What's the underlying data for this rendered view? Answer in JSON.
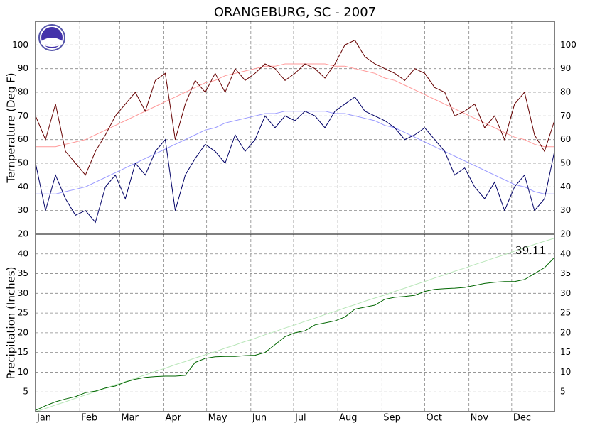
{
  "chart_data": [
    {
      "type": "line",
      "title": "ORANGEBURG, SC - 2007",
      "ylabel": "Temperature (Deg F)",
      "x": [
        1,
        8,
        15,
        22,
        29,
        36,
        43,
        50,
        57,
        64,
        71,
        78,
        85,
        92,
        99,
        106,
        113,
        120,
        127,
        134,
        141,
        148,
        155,
        162,
        169,
        176,
        183,
        190,
        197,
        204,
        211,
        218,
        225,
        232,
        239,
        246,
        253,
        260,
        267,
        274,
        281,
        288,
        295,
        302,
        309,
        316,
        323,
        330,
        337,
        344,
        351,
        358,
        365
      ],
      "xlim": [
        1,
        365
      ],
      "ylim": [
        20,
        110
      ],
      "yticks": [
        20,
        30,
        40,
        50,
        60,
        70,
        80,
        90,
        100
      ],
      "grid": true,
      "series": [
        {
          "color": "#ff9999",
          "values": [
            57,
            57,
            57,
            58,
            59,
            60,
            62,
            64,
            66,
            68,
            70,
            72,
            74,
            76,
            78,
            80,
            82,
            84,
            85,
            87,
            88,
            89,
            90,
            91,
            91,
            92,
            92,
            92,
            92,
            92,
            91,
            91,
            90,
            89,
            88,
            86,
            85,
            83,
            81,
            79,
            77,
            75,
            73,
            71,
            69,
            67,
            65,
            63,
            61,
            60,
            58,
            57,
            57
          ]
        },
        {
          "color": "#9999ff",
          "values": [
            37,
            37,
            37,
            38,
            39,
            40,
            42,
            44,
            46,
            48,
            50,
            52,
            54,
            56,
            58,
            60,
            62,
            64,
            65,
            67,
            68,
            69,
            70,
            71,
            71,
            72,
            72,
            72,
            72,
            72,
            71,
            71,
            70,
            69,
            68,
            66,
            65,
            63,
            61,
            59,
            57,
            55,
            53,
            51,
            49,
            47,
            45,
            43,
            41,
            40,
            38,
            37,
            37
          ]
        },
        {
          "color": "#660000",
          "values": [
            70,
            60,
            75,
            55,
            50,
            45,
            55,
            62,
            70,
            75,
            80,
            72,
            85,
            88,
            60,
            75,
            85,
            80,
            88,
            80,
            90,
            85,
            88,
            92,
            90,
            85,
            88,
            92,
            90,
            86,
            92,
            100,
            102,
            95,
            92,
            90,
            88,
            85,
            90,
            88,
            82,
            80,
            70,
            72,
            75,
            65,
            70,
            60,
            75,
            80,
            62,
            55,
            68
          ]
        },
        {
          "color": "#000066",
          "values": [
            50,
            30,
            45,
            35,
            28,
            30,
            25,
            40,
            45,
            35,
            50,
            45,
            55,
            60,
            30,
            45,
            52,
            58,
            55,
            50,
            62,
            55,
            60,
            70,
            65,
            70,
            68,
            72,
            70,
            65,
            72,
            75,
            78,
            72,
            70,
            68,
            65,
            60,
            62,
            65,
            60,
            55,
            45,
            48,
            40,
            35,
            42,
            30,
            40,
            45,
            30,
            35,
            55
          ]
        }
      ]
    },
    {
      "type": "line",
      "ylabel": "Precipitation (Inches)",
      "x": [
        1,
        8,
        15,
        22,
        29,
        36,
        43,
        50,
        57,
        64,
        71,
        78,
        85,
        92,
        99,
        106,
        113,
        120,
        127,
        134,
        141,
        148,
        155,
        162,
        169,
        176,
        183,
        190,
        197,
        204,
        211,
        218,
        225,
        232,
        239,
        246,
        253,
        260,
        267,
        274,
        281,
        288,
        295,
        302,
        309,
        316,
        323,
        330,
        337,
        344,
        351,
        358,
        365
      ],
      "xlim": [
        1,
        365
      ],
      "ylim": [
        0,
        45
      ],
      "yticks": [
        5,
        10,
        15,
        20,
        25,
        30,
        35,
        40
      ],
      "grid": true,
      "xticks": [
        {
          "value": 1,
          "label": "Jan"
        },
        {
          "value": 32,
          "label": "Feb"
        },
        {
          "value": 60,
          "label": "Mar"
        },
        {
          "value": 91,
          "label": "Apr"
        },
        {
          "value": 121,
          "label": "May"
        },
        {
          "value": 152,
          "label": "Jun"
        },
        {
          "value": 182,
          "label": "Jul"
        },
        {
          "value": 213,
          "label": "Aug"
        },
        {
          "value": 244,
          "label": "Sep"
        },
        {
          "value": 274,
          "label": "Oct"
        },
        {
          "value": 305,
          "label": "Nov"
        },
        {
          "value": 335,
          "label": "Dec"
        }
      ],
      "series": [
        {
          "color": "#b8e6b8",
          "values": [
            0,
            0.8,
            1.7,
            2.5,
            3.4,
            4.2,
            5.1,
            5.9,
            6.8,
            7.6,
            8.5,
            9.3,
            10.2,
            11,
            11.9,
            12.7,
            13.6,
            14.4,
            15.2,
            16.1,
            16.9,
            17.8,
            18.6,
            19.5,
            20.3,
            21.2,
            22,
            22.9,
            23.7,
            24.6,
            25.4,
            26.3,
            27.1,
            28,
            28.8,
            29.6,
            30.5,
            31.3,
            32.2,
            33,
            33.9,
            34.7,
            35.6,
            36.4,
            37.3,
            38.1,
            39,
            39.8,
            40.7,
            41.5,
            42.4,
            43.2,
            44
          ]
        },
        {
          "color": "#006600",
          "values": [
            0.3,
            1.5,
            2.5,
            3.2,
            3.8,
            4.8,
            5.2,
            6,
            6.5,
            7.5,
            8.2,
            8.7,
            8.9,
            9,
            9,
            9.2,
            12.5,
            13.5,
            13.9,
            14,
            14,
            14.2,
            14.3,
            15,
            17,
            19,
            20,
            20.5,
            22,
            22.5,
            23,
            24,
            26,
            26.5,
            27,
            28.5,
            29,
            29.2,
            29.5,
            30.5,
            31,
            31.2,
            31.3,
            31.5,
            32,
            32.5,
            32.8,
            33,
            33,
            33.5,
            35,
            36.5,
            39.11
          ]
        }
      ]
    }
  ]
}
